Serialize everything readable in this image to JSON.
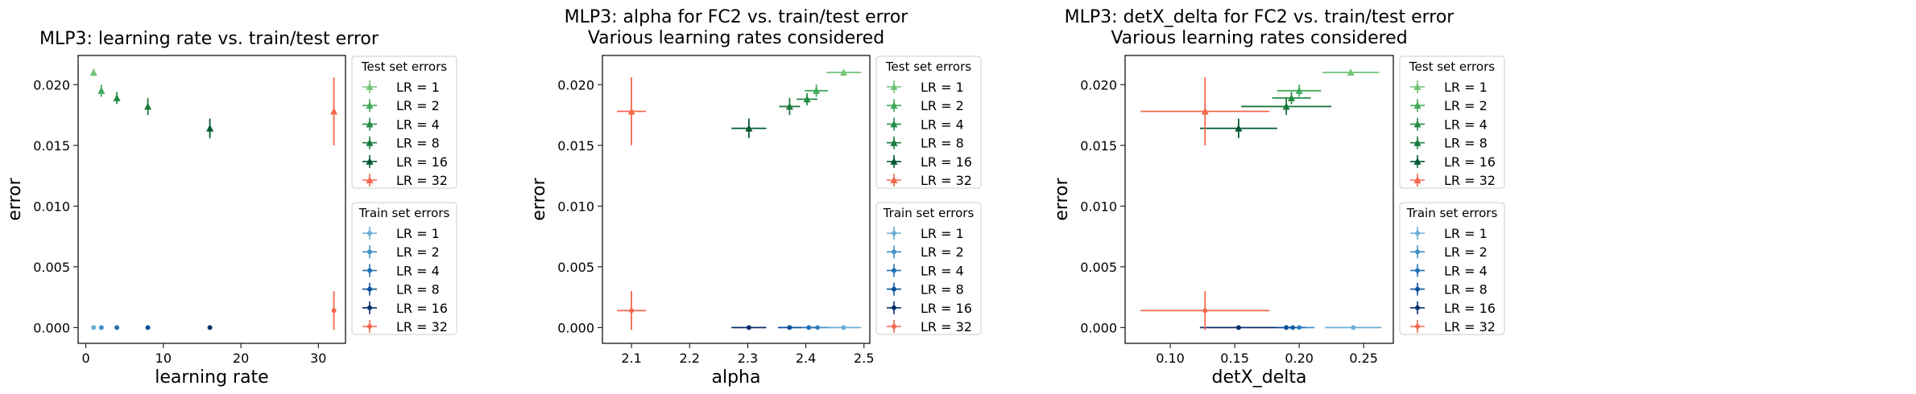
{
  "test_legend_title": "Test set errors",
  "train_legend_title": "Train set errors",
  "lr_labels": [
    "LR = 1",
    "LR = 2",
    "LR = 4",
    "LR = 8",
    "LR = 16",
    "LR = 32"
  ],
  "colors": {
    "test": [
      "#74c476",
      "#41ab5d",
      "#238b45",
      "#1a7a3a",
      "#005a32",
      "#f4674e"
    ],
    "train": [
      "#6baed6",
      "#4292c6",
      "#2171b5",
      "#08519c",
      "#08306b",
      "#f4674e"
    ]
  },
  "chart_data": [
    {
      "type": "scatter",
      "title": "MLP3: learning rate vs. train/test error",
      "xlabel": "learning rate",
      "ylabel": "error",
      "xlim": [
        -1,
        33.5
      ],
      "ylim": [
        -0.0013,
        0.0224
      ],
      "xticks": [
        0,
        10,
        20,
        30
      ],
      "xtick_labels": [
        "0",
        "10",
        "20",
        "30"
      ],
      "yticks": [
        0,
        0.005,
        0.01,
        0.015,
        0.02
      ],
      "ytick_labels": [
        "0.000",
        "0.005",
        "0.010",
        "0.015",
        "0.020"
      ],
      "legend_position": "outside-right",
      "test_series": [
        {
          "x": 1,
          "y": 0.021,
          "xerr": 0,
          "yerr": 0.0003
        },
        {
          "x": 2,
          "y": 0.0195,
          "xerr": 0,
          "yerr": 0.0005
        },
        {
          "x": 4,
          "y": 0.0189,
          "xerr": 0,
          "yerr": 0.0005
        },
        {
          "x": 8,
          "y": 0.0182,
          "xerr": 0,
          "yerr": 0.0007
        },
        {
          "x": 16,
          "y": 0.0164,
          "xerr": 0,
          "yerr": 0.0008
        },
        {
          "x": 32,
          "y": 0.0178,
          "xerr": 0,
          "yerr": 0.0028
        }
      ],
      "train_series": [
        {
          "x": 1,
          "y": 0.0,
          "xerr": 0,
          "yerr": 0
        },
        {
          "x": 2,
          "y": 0.0,
          "xerr": 0,
          "yerr": 0
        },
        {
          "x": 4,
          "y": 0.0,
          "xerr": 0,
          "yerr": 0
        },
        {
          "x": 8,
          "y": 0.0,
          "xerr": 0,
          "yerr": 0
        },
        {
          "x": 16,
          "y": 0.0,
          "xerr": 0,
          "yerr": 0
        },
        {
          "x": 32,
          "y": 0.0014,
          "xerr": 0,
          "yerr": 0.0016
        }
      ]
    },
    {
      "type": "scatter",
      "title": "MLP3: alpha for FC2 vs. train/test error",
      "subtitle": "Various learning rates considered",
      "xlabel": "alpha",
      "ylabel": "error",
      "xlim": [
        2.05,
        2.51
      ],
      "ylim": [
        -0.0013,
        0.0224
      ],
      "xticks": [
        2.1,
        2.2,
        2.3,
        2.4,
        2.5
      ],
      "xtick_labels": [
        "2.1",
        "2.2",
        "2.3",
        "2.4",
        "2.5"
      ],
      "yticks": [
        0,
        0.005,
        0.01,
        0.015,
        0.02
      ],
      "ytick_labels": [
        "0.000",
        "0.005",
        "0.010",
        "0.015",
        "0.020"
      ],
      "legend_position": "outside-right",
      "test_series": [
        {
          "x": 2.465,
          "y": 0.021,
          "xerr": 0.03,
          "yerr": 0.0002
        },
        {
          "x": 2.418,
          "y": 0.0195,
          "xerr": 0.02,
          "yerr": 0.0005
        },
        {
          "x": 2.402,
          "y": 0.0188,
          "xerr": 0.018,
          "yerr": 0.0005
        },
        {
          "x": 2.372,
          "y": 0.0182,
          "xerr": 0.018,
          "yerr": 0.0007
        },
        {
          "x": 2.302,
          "y": 0.0164,
          "xerr": 0.03,
          "yerr": 0.0008
        },
        {
          "x": 2.1,
          "y": 0.0178,
          "xerr": 0.025,
          "yerr": 0.0028
        }
      ],
      "train_series": [
        {
          "x": 2.465,
          "y": 0.0,
          "xerr": 0.03,
          "yerr": 0
        },
        {
          "x": 2.42,
          "y": 0.0,
          "xerr": 0.02,
          "yerr": 0
        },
        {
          "x": 2.405,
          "y": 0.0,
          "xerr": 0.018,
          "yerr": 0
        },
        {
          "x": 2.372,
          "y": 0.0,
          "xerr": 0.02,
          "yerr": 0
        },
        {
          "x": 2.302,
          "y": 0.0,
          "xerr": 0.03,
          "yerr": 0
        },
        {
          "x": 2.1,
          "y": 0.0014,
          "xerr": 0.025,
          "yerr": 0.0016
        }
      ]
    },
    {
      "type": "scatter",
      "title": "MLP3: detX_delta for FC2 vs. train/test error",
      "subtitle": "Various learning rates considered",
      "xlabel": "detX_delta",
      "ylabel": "error",
      "xlim": [
        0.065,
        0.273
      ],
      "ylim": [
        -0.0013,
        0.0224
      ],
      "xticks": [
        0.1,
        0.15,
        0.2,
        0.25
      ],
      "xtick_labels": [
        "0.10",
        "0.15",
        "0.20",
        "0.25"
      ],
      "yticks": [
        0,
        0.005,
        0.01,
        0.015,
        0.02
      ],
      "ytick_labels": [
        "0.000",
        "0.005",
        "0.010",
        "0.015",
        "0.020"
      ],
      "legend_position": "outside-right",
      "test_series": [
        {
          "x": 0.24,
          "y": 0.021,
          "xerr": 0.022,
          "yerr": 0.0002
        },
        {
          "x": 0.2,
          "y": 0.0195,
          "xerr": 0.017,
          "yerr": 0.0005
        },
        {
          "x": 0.194,
          "y": 0.0189,
          "xerr": 0.015,
          "yerr": 0.0005
        },
        {
          "x": 0.19,
          "y": 0.0182,
          "xerr": 0.035,
          "yerr": 0.0007
        },
        {
          "x": 0.153,
          "y": 0.0164,
          "xerr": 0.03,
          "yerr": 0.0008
        },
        {
          "x": 0.127,
          "y": 0.0178,
          "xerr": 0.05,
          "yerr": 0.0028
        }
      ],
      "train_series": [
        {
          "x": 0.242,
          "y": 0.0,
          "xerr": 0.022,
          "yerr": 0
        },
        {
          "x": 0.2,
          "y": 0.0,
          "xerr": 0.012,
          "yerr": 0
        },
        {
          "x": 0.195,
          "y": 0.0,
          "xerr": 0.01,
          "yerr": 0
        },
        {
          "x": 0.19,
          "y": 0.0,
          "xerr": 0.007,
          "yerr": 0
        },
        {
          "x": 0.153,
          "y": 0.0,
          "xerr": 0.03,
          "yerr": 0
        },
        {
          "x": 0.127,
          "y": 0.0014,
          "xerr": 0.05,
          "yerr": 0.0016
        }
      ]
    }
  ]
}
